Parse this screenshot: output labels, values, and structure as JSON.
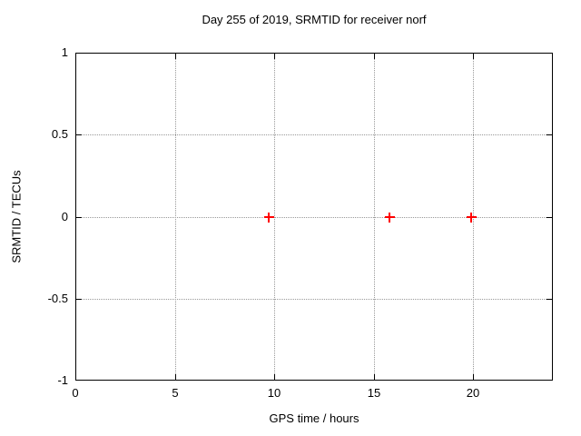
{
  "chart_data": {
    "type": "scatter",
    "title": "Day 255 of 2019, SRMTID for receiver norf",
    "xlabel": "GPS time / hours",
    "ylabel": "SRMTID / TECUs",
    "xlim": [
      0,
      24
    ],
    "ylim": [
      -1,
      1
    ],
    "xticks": [
      0,
      5,
      10,
      15,
      20
    ],
    "yticks": [
      -1,
      -0.5,
      0,
      0.5,
      1
    ],
    "grid": true,
    "legend": false,
    "series": [
      {
        "name": "SRMTID",
        "marker": "plus",
        "color": "#ff0000",
        "points": [
          {
            "x": 9.7,
            "y": 0
          },
          {
            "x": 15.8,
            "y": 0
          },
          {
            "x": 19.9,
            "y": 0
          }
        ]
      }
    ]
  },
  "colors": {
    "background": "#ffffff",
    "axis_border": "#000000",
    "grid": "#999999",
    "text": "#000000",
    "marker": "#ff0000"
  }
}
